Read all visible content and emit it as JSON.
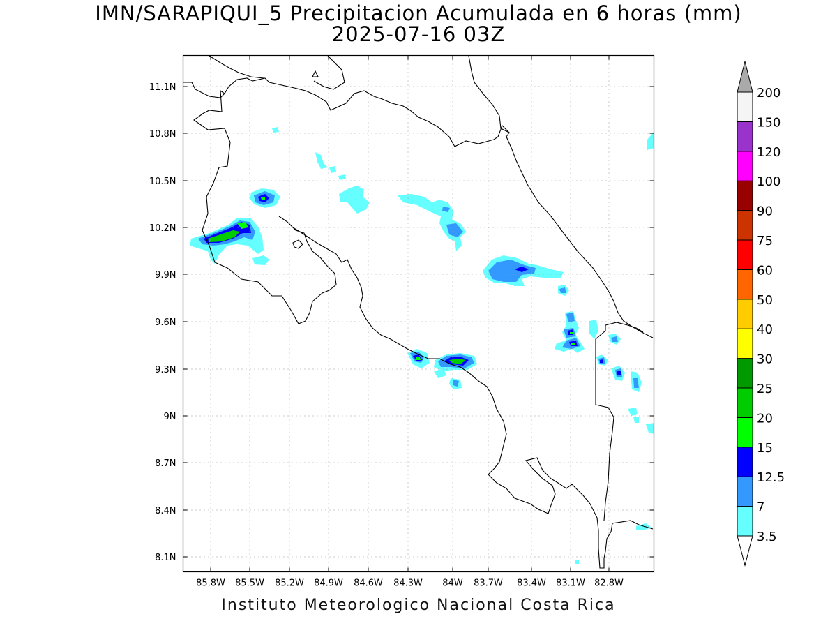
{
  "title": {
    "line1": "IMN/SARAPIQUI_5 Precipitacion Acumulada en 6 horas (mm)",
    "line2": "2025-07-16 03Z"
  },
  "footer": "Instituto Meteorologico Nacional Costa Rica",
  "map": {
    "lon_range": [
      -86.17,
      -82.52
    ],
    "lat_range": [
      7.98,
      11.3
    ],
    "x_ticks": [
      "85.8W",
      "85.5W",
      "85.2W",
      "84.9W",
      "84.6W",
      "84.3W",
      "84W",
      "83.7W",
      "83.4W",
      "83.1W",
      "82.8W"
    ],
    "y_ticks": [
      "11.1N",
      "10.8N",
      "10.5N",
      "10.2N",
      "9.9N",
      "9.6N",
      "9.3N",
      "9N",
      "8.7N",
      "8.4N",
      "8.1N"
    ],
    "grid": "dotted"
  },
  "colorbar": {
    "levels": [
      "3.5",
      "7",
      "12.5",
      "15",
      "20",
      "25",
      "30",
      "40",
      "50",
      "60",
      "75",
      "90",
      "100",
      "120",
      "150",
      "200"
    ],
    "colors": [
      "#66ffff",
      "#3399ff",
      "#0000ff",
      "#00ff00",
      "#00cc00",
      "#009900",
      "#ffff00",
      "#ffcc00",
      "#ff6600",
      "#ff0000",
      "#cc3300",
      "#990000",
      "#ff00ff",
      "#9933cc",
      "#f5f5f5",
      "#aaaaaa"
    ],
    "under_color": "#ffffff",
    "over_color": "#aaaaaa"
  },
  "colors": {
    "light_cyan": "#66ffff",
    "light_blue": "#3399ff",
    "blue": "#0000ff",
    "green": "#00ff00",
    "mid_green": "#00cc00",
    "dark_green": "#009900",
    "coast": "#000000",
    "grid": "#999999"
  },
  "precip_cells": [
    {
      "name": "cell-lake-nicaragua-north",
      "level": 1,
      "points": [
        [
          -84.93,
          10.67
        ],
        [
          -84.85,
          10.6
        ],
        [
          -84.95,
          10.58
        ]
      ]
    }
  ]
}
